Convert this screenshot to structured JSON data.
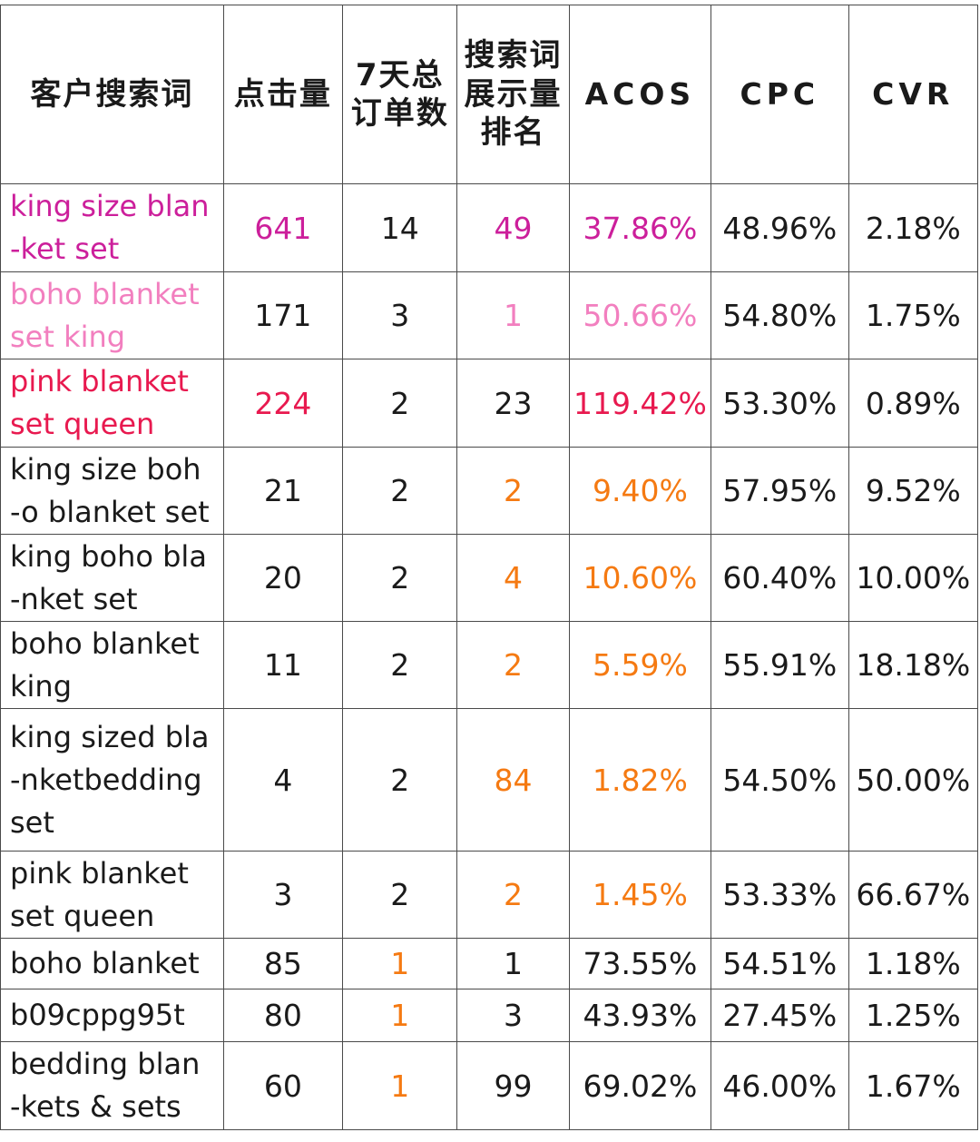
{
  "header": {
    "col1": "客户搜索词",
    "col2": "点击量",
    "col3": "7天总订单数",
    "col4": "搜索词展示量排名",
    "col5": "ACOS",
    "col6": "CPC",
    "col7": "CVR"
  },
  "colors": {
    "magenta": "#cc1f9b",
    "pink": "#f27fbf",
    "red": "#e8194f",
    "orange": "#f57a12",
    "default": "#1a1a1a"
  },
  "rows": [
    {
      "term_lines": [
        "king size blan",
        "-ket set"
      ],
      "clicks": "641",
      "orders": "14",
      "rank": "49",
      "acos": "37.86%",
      "cpc": "48.96%",
      "cvr": "2.18%"
    },
    {
      "term_lines": [
        "boho blanket",
        "set king"
      ],
      "clicks": "171",
      "orders": "3",
      "rank": "1",
      "acos": "50.66%",
      "cpc": "54.80%",
      "cvr": "1.75%"
    },
    {
      "term_lines": [
        "pink blanket",
        "set queen"
      ],
      "clicks": "224",
      "orders": "2",
      "rank": "23",
      "acos": "119.42%",
      "cpc": "53.30%",
      "cvr": "0.89%"
    },
    {
      "term_lines": [
        "king size boh",
        "-o blanket set"
      ],
      "clicks": "21",
      "orders": "2",
      "rank": "2",
      "acos": "9.40%",
      "cpc": "57.95%",
      "cvr": "9.52%"
    },
    {
      "term_lines": [
        "king boho bla",
        "-nket set"
      ],
      "clicks": "20",
      "orders": "2",
      "rank": "4",
      "acos": "10.60%",
      "cpc": "60.40%",
      "cvr": "10.00%"
    },
    {
      "term_lines": [
        "boho blanket",
        "king"
      ],
      "clicks": "11",
      "orders": "2",
      "rank": "2",
      "acos": "5.59%",
      "cpc": "55.91%",
      "cvr": "18.18%"
    },
    {
      "term_lines": [
        "king sized bla",
        "-nketbedding",
        "set"
      ],
      "clicks": "4",
      "orders": "2",
      "rank": "84",
      "acos": "1.82%",
      "cpc": "54.50%",
      "cvr": "50.00%"
    },
    {
      "term_lines": [
        "pink blanket",
        "set queen"
      ],
      "clicks": "3",
      "orders": "2",
      "rank": "2",
      "acos": "1.45%",
      "cpc": "53.33%",
      "cvr": "66.67%"
    },
    {
      "term_lines": [
        "boho blanket"
      ],
      "clicks": "85",
      "orders": "1",
      "rank": "1",
      "acos": "73.55%",
      "cpc": "54.51%",
      "cvr": "1.18%"
    },
    {
      "term_lines": [
        "b09cppg95t"
      ],
      "clicks": "80",
      "orders": "1",
      "rank": "3",
      "acos": "43.93%",
      "cpc": "27.45%",
      "cvr": "1.25%"
    },
    {
      "term_lines": [
        "bedding blan",
        "-kets & sets"
      ],
      "clicks": "60",
      "orders": "1",
      "rank": "99",
      "acos": "69.02%",
      "cpc": "46.00%",
      "cvr": "1.67%"
    }
  ]
}
